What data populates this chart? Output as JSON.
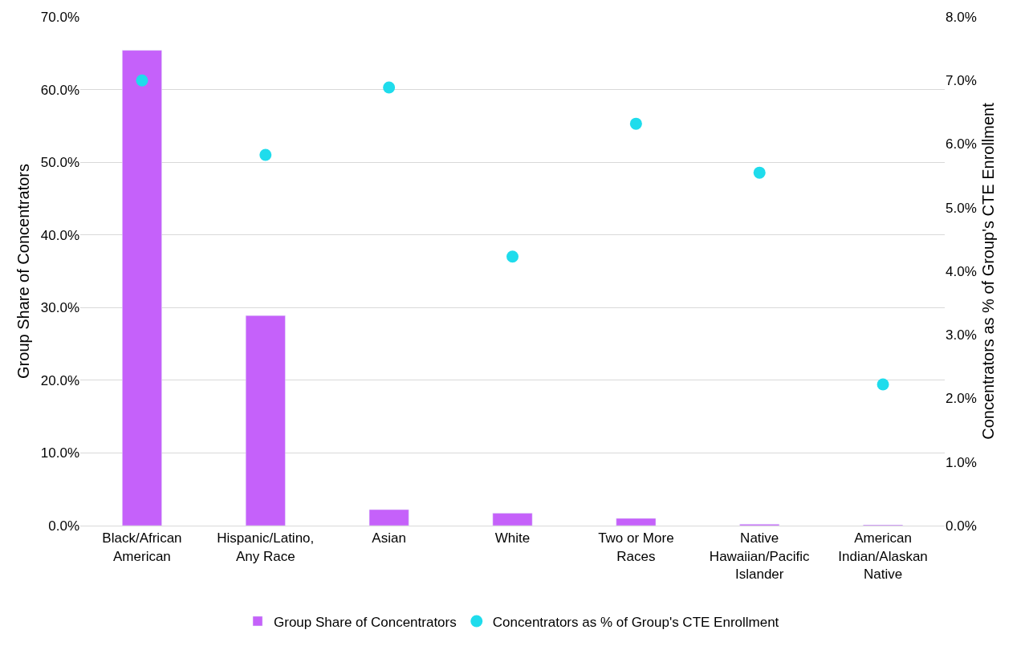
{
  "chart_data": {
    "type": "bar",
    "ylabel": "Group Share of Concentrators",
    "y2label": "Concentrators as % of Group's CTE Enrollment",
    "categories": [
      "Black/African American",
      "Hispanic/Latino, Any Race",
      "Asian",
      "White",
      "Two or More Races",
      "Native Hawaiian/Pacific Islander",
      "American Indian/Alaskan Native"
    ],
    "series": [
      {
        "name": "Group Share of Concentrators",
        "color": "#c561fa",
        "values": [
          65.4,
          28.9,
          2.2,
          1.7,
          1.0,
          0.2,
          0.1
        ]
      },
      {
        "name": "Concentrators as % of Group's CTE Enrollment",
        "type": "scatter",
        "axis": "y2",
        "marker": "circle",
        "color": "#1fdcec",
        "values": [
          7.0,
          5.83,
          6.89,
          4.23,
          6.32,
          5.55,
          2.22
        ]
      }
    ],
    "ylim": [
      0,
      70
    ],
    "yticks": [
      {
        "value": 0,
        "label": "0.0%"
      },
      {
        "value": 10,
        "label": "10.0%"
      },
      {
        "value": 20,
        "label": "20.0%"
      },
      {
        "value": 30,
        "label": "30.0%"
      },
      {
        "value": 40,
        "label": "40.0%"
      },
      {
        "value": 50,
        "label": "50.0%"
      },
      {
        "value": 60,
        "label": "60.0%"
      },
      {
        "value": 70,
        "label": "70.0%"
      }
    ],
    "y2lim": [
      0,
      8
    ],
    "y2ticks": [
      {
        "value": 0,
        "label": "0.0%"
      },
      {
        "value": 1,
        "label": "1.0%"
      },
      {
        "value": 2,
        "label": "2.0%"
      },
      {
        "value": 3,
        "label": "3.0%"
      },
      {
        "value": 4,
        "label": "4.0%"
      },
      {
        "value": 5,
        "label": "5.0%"
      },
      {
        "value": 6,
        "label": "6.0%"
      },
      {
        "value": 7,
        "label": "7.0%"
      },
      {
        "value": 8,
        "label": "8.0%"
      }
    ],
    "grid": "y",
    "legend": "bottom"
  }
}
